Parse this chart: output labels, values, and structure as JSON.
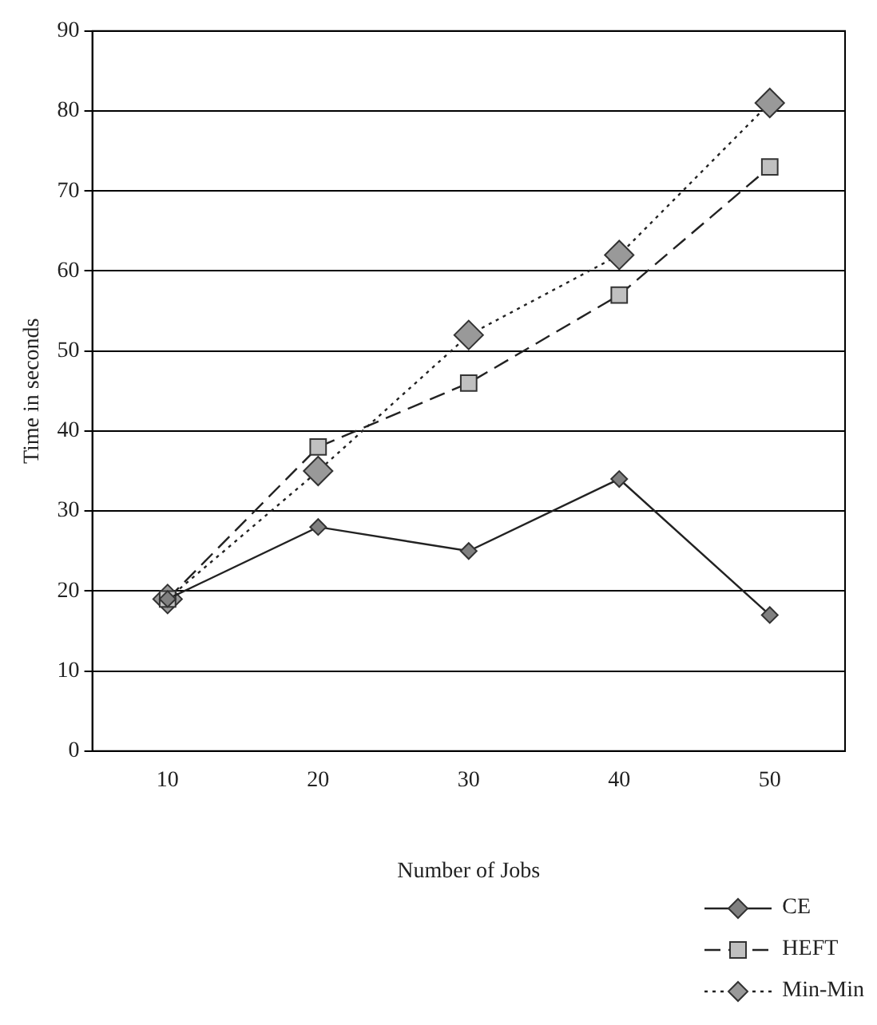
{
  "chart_data": {
    "type": "line",
    "xlabel": "Number of Jobs",
    "ylabel": "Time in seconds",
    "categories": [
      "10",
      "20",
      "30",
      "40",
      "50"
    ],
    "series": [
      {
        "name": "CE",
        "color": "#808080",
        "values": [
          19,
          28,
          25,
          34,
          17
        ],
        "marker": "diamond",
        "line_style": "solid"
      },
      {
        "name": "HEFT",
        "color": "#c0c0c0",
        "values": [
          19,
          38,
          46,
          57,
          73
        ],
        "marker": "square",
        "line_style": "dashed"
      },
      {
        "name": "Min-Min",
        "color": "#999999",
        "values": [
          19,
          35,
          52,
          62,
          81
        ],
        "marker": "diamond",
        "line_style": "dotted"
      }
    ],
    "ylim": [
      0,
      90
    ],
    "yticks": [
      0,
      10,
      20,
      30,
      40,
      50,
      60,
      70,
      80,
      90
    ],
    "grid": "y",
    "legend": "bottom right"
  }
}
